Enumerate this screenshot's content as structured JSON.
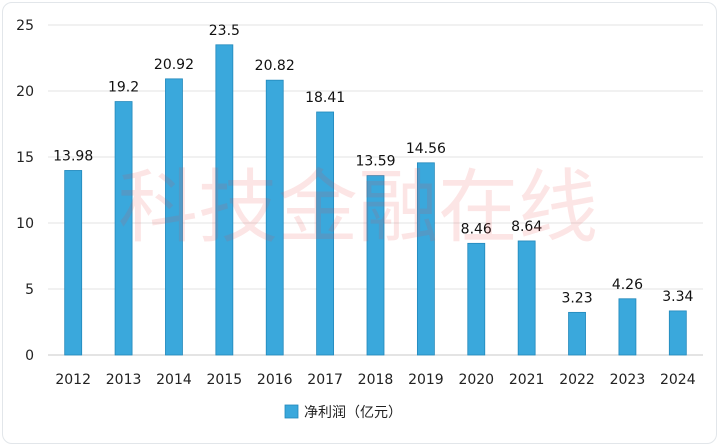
{
  "chart_data": {
    "type": "bar",
    "categories": [
      "2012",
      "2013",
      "2014",
      "2015",
      "2016",
      "2017",
      "2018",
      "2019",
      "2020",
      "2021",
      "2022",
      "2023",
      "2024"
    ],
    "series": [
      {
        "name": "净利润（亿元）",
        "values": [
          13.98,
          19.2,
          20.92,
          23.5,
          20.82,
          18.41,
          13.59,
          14.56,
          8.46,
          8.64,
          3.23,
          4.26,
          3.34
        ],
        "value_labels": [
          "13.98",
          "19.2",
          "20.92",
          "23.5",
          "20.82",
          "18.41",
          "13.59",
          "14.56",
          "8.46",
          "8.64",
          "3.23",
          "4.26",
          "3.34"
        ],
        "color": "#3aa8dc"
      }
    ],
    "title": "",
    "xlabel": "",
    "ylabel": "",
    "ylim": [
      0,
      25
    ],
    "yticks": [
      0,
      5,
      10,
      15,
      20,
      25
    ],
    "grid": true,
    "legend_position": "bottom"
  },
  "watermark": "科技金融在线",
  "colors": {
    "bar": "#3aa8dc",
    "bar_edge": "#2288bb",
    "watermark": "#e8464a"
  }
}
